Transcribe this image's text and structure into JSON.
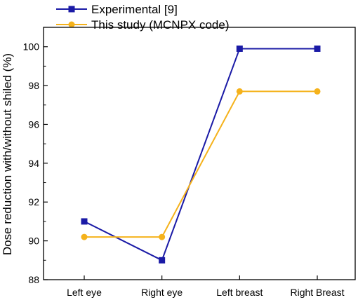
{
  "chart_data": {
    "type": "line",
    "categories": [
      "Left eye",
      "Right eye",
      "Left breast",
      "Right Breast"
    ],
    "series": [
      {
        "name": "Experimental [9]",
        "values": [
          91.0,
          89.0,
          99.9,
          99.9
        ],
        "color": "#1a1aa6",
        "marker": "square"
      },
      {
        "name": "This study (MCNPX code)",
        "values": [
          90.2,
          90.2,
          97.7,
          97.7
        ],
        "color": "#f5b21b",
        "marker": "circle"
      }
    ],
    "xlabel": "",
    "ylabel": "Dose reduction with/without shiled (%)",
    "ylim": [
      88,
      101
    ],
    "yticks": [
      88,
      90,
      92,
      94,
      96,
      98,
      100
    ],
    "grid": false,
    "legend_position": "top-left outside"
  }
}
